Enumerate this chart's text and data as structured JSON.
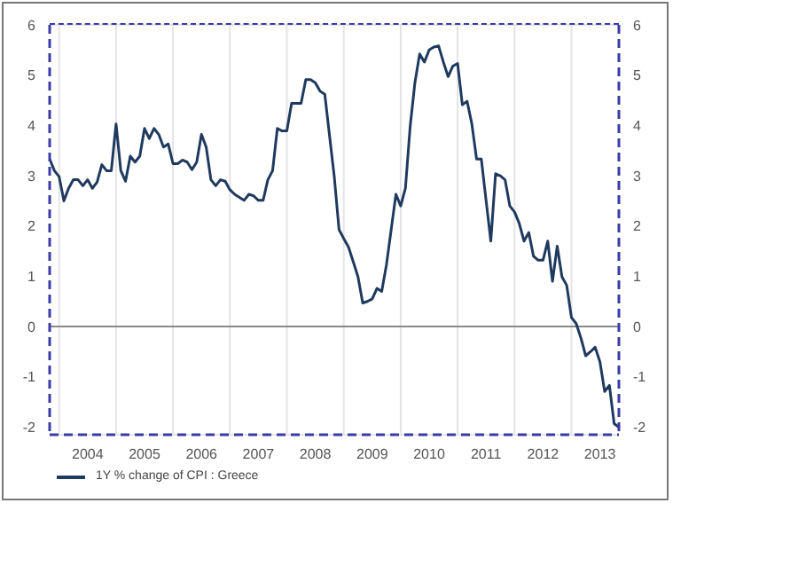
{
  "chart_data": {
    "type": "line",
    "x": [
      "2003-11",
      "2003-12",
      "2004-01",
      "2004-02",
      "2004-03",
      "2004-04",
      "2004-05",
      "2004-06",
      "2004-07",
      "2004-08",
      "2004-09",
      "2004-10",
      "2004-11",
      "2004-12",
      "2005-01",
      "2005-02",
      "2005-03",
      "2005-04",
      "2005-05",
      "2005-06",
      "2005-07",
      "2005-08",
      "2005-09",
      "2005-10",
      "2005-11",
      "2005-12",
      "2006-01",
      "2006-02",
      "2006-03",
      "2006-04",
      "2006-05",
      "2006-06",
      "2006-07",
      "2006-08",
      "2006-09",
      "2006-10",
      "2006-11",
      "2006-12",
      "2007-01",
      "2007-02",
      "2007-03",
      "2007-04",
      "2007-05",
      "2007-06",
      "2007-07",
      "2007-08",
      "2007-09",
      "2007-10",
      "2007-11",
      "2007-12",
      "2008-01",
      "2008-02",
      "2008-03",
      "2008-04",
      "2008-05",
      "2008-06",
      "2008-07",
      "2008-08",
      "2008-09",
      "2008-10",
      "2008-11",
      "2008-12",
      "2009-01",
      "2009-02",
      "2009-03",
      "2009-04",
      "2009-05",
      "2009-06",
      "2009-07",
      "2009-08",
      "2009-09",
      "2009-10",
      "2009-11",
      "2009-12",
      "2010-01",
      "2010-02",
      "2010-03",
      "2010-04",
      "2010-05",
      "2010-06",
      "2010-07",
      "2010-08",
      "2010-09",
      "2010-10",
      "2010-11",
      "2010-12",
      "2011-01",
      "2011-02",
      "2011-03",
      "2011-04",
      "2011-05",
      "2011-06",
      "2011-07",
      "2011-08",
      "2011-09",
      "2011-10",
      "2011-11",
      "2011-12",
      "2012-01",
      "2012-02",
      "2012-03",
      "2012-04",
      "2012-05",
      "2012-06",
      "2012-07",
      "2012-08",
      "2012-09",
      "2012-10",
      "2012-11",
      "2012-12",
      "2013-01",
      "2013-02",
      "2013-03",
      "2013-04",
      "2013-05",
      "2013-06",
      "2013-07",
      "2013-08",
      "2013-09",
      "2013-10",
      "2013-11"
    ],
    "series": [
      {
        "name": "1Y % change of CPI : Greece",
        "color": "#1f3a5f",
        "values": [
          3.33,
          3.1,
          2.98,
          2.5,
          2.75,
          2.92,
          2.92,
          2.8,
          2.92,
          2.75,
          2.87,
          3.22,
          3.1,
          3.1,
          4.03,
          3.1,
          2.89,
          3.39,
          3.27,
          3.39,
          3.94,
          3.74,
          3.94,
          3.82,
          3.57,
          3.63,
          3.24,
          3.24,
          3.31,
          3.27,
          3.12,
          3.27,
          3.82,
          3.57,
          2.92,
          2.8,
          2.92,
          2.89,
          2.72,
          2.63,
          2.57,
          2.51,
          2.63,
          2.6,
          2.51,
          2.51,
          2.92,
          3.1,
          3.94,
          3.89,
          3.89,
          4.44,
          4.44,
          4.44,
          4.91,
          4.91,
          4.85,
          4.68,
          4.62,
          3.8,
          2.98,
          1.93,
          1.75,
          1.58,
          1.29,
          0.99,
          0.47,
          0.5,
          0.55,
          0.76,
          0.7,
          1.23,
          1.93,
          2.63,
          2.4,
          2.75,
          3.98,
          4.85,
          5.42,
          5.26,
          5.5,
          5.56,
          5.58,
          5.26,
          4.97,
          5.18,
          5.23,
          4.41,
          4.48,
          4.03,
          3.33,
          3.33,
          2.51,
          1.7,
          3.04,
          3.0,
          2.92,
          2.4,
          2.28,
          2.05,
          1.7,
          1.87,
          1.4,
          1.32,
          1.32,
          1.7,
          0.9,
          1.6,
          0.99,
          0.82,
          0.18,
          0.06,
          -0.23,
          -0.58,
          -0.5,
          -0.41,
          -0.7,
          -1.29,
          -1.17,
          -1.93,
          -2.0
        ]
      }
    ],
    "xlim": [
      "2003-11",
      "2013-11"
    ],
    "xticks": [
      {
        "value": "2004-01",
        "label": null
      },
      {
        "value": "2004-07",
        "label": "2004"
      },
      {
        "value": "2005-01",
        "label": null
      },
      {
        "value": "2005-07",
        "label": "2005"
      },
      {
        "value": "2006-01",
        "label": null
      },
      {
        "value": "2006-07",
        "label": "2006"
      },
      {
        "value": "2007-01",
        "label": null
      },
      {
        "value": "2007-07",
        "label": "2007"
      },
      {
        "value": "2008-01",
        "label": null
      },
      {
        "value": "2008-07",
        "label": "2008"
      },
      {
        "value": "2009-01",
        "label": null
      },
      {
        "value": "2009-07",
        "label": "2009"
      },
      {
        "value": "2010-01",
        "label": null
      },
      {
        "value": "2010-07",
        "label": "2010"
      },
      {
        "value": "2011-01",
        "label": null
      },
      {
        "value": "2011-07",
        "label": "2011"
      },
      {
        "value": "2012-01",
        "label": null
      },
      {
        "value": "2012-07",
        "label": "2012"
      },
      {
        "value": "2013-01",
        "label": null
      },
      {
        "value": "2013-07",
        "label": "2013"
      }
    ],
    "ylim": [
      -2.15,
      6
    ],
    "yticks": [
      -2,
      -1,
      0,
      1,
      2,
      3,
      4,
      5,
      6
    ],
    "y2lim": [
      -2.15,
      6
    ],
    "y2ticks": [
      -2,
      -1,
      0,
      1,
      2,
      3,
      4,
      5,
      6
    ],
    "ref_lines": [
      {
        "axis": "y",
        "value": 0,
        "label": null,
        "color": "#888888"
      }
    ],
    "grid": true,
    "legend": "bottom left",
    "marker": "none",
    "line_style": "solid"
  }
}
